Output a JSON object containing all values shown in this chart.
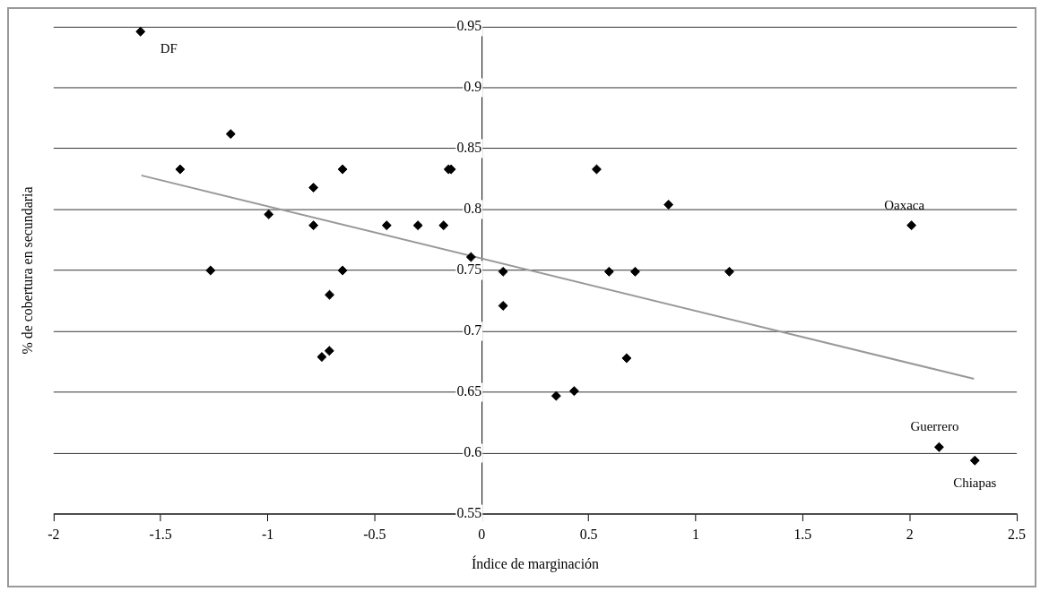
{
  "chart_data": {
    "type": "scatter",
    "xlabel": "Índice de marginación",
    "ylabel": "% de cobertura en secundaria",
    "series": [
      {
        "color": "#000000",
        "marker": "diamond",
        "x": [
          -1.594,
          -1.409,
          -1.173,
          -1.267,
          -0.995,
          -0.786,
          -0.786,
          -0.65,
          -0.65,
          -0.711,
          -0.747,
          -0.712,
          -0.444,
          -0.298,
          -0.178,
          -0.155,
          -0.143,
          -0.05,
          0.1,
          0.1,
          0.348,
          0.432,
          0.537,
          0.595,
          0.717,
          0.677,
          0.873,
          1.157,
          2.008,
          2.137,
          2.304
        ],
        "values": [
          0.946,
          0.833,
          0.862,
          0.75,
          0.796,
          0.818,
          0.787,
          0.833,
          0.75,
          0.73,
          0.679,
          0.684,
          0.787,
          0.787,
          0.787,
          0.833,
          0.833,
          0.761,
          0.749,
          0.721,
          0.647,
          0.651,
          0.833,
          0.749,
          0.749,
          0.678,
          0.804,
          0.749,
          0.787,
          0.605,
          0.594
        ]
      },
      {
        "type": "line",
        "color": "#999999",
        "marker": "none",
        "line_style": "solid",
        "x": [
          -1.59,
          2.3
        ],
        "values": [
          0.828,
          0.661
        ]
      }
    ],
    "annotations": [
      {
        "text": "DF",
        "x": -1.594,
        "y": 0.946
      },
      {
        "text": "Oaxaca",
        "x": 2.008,
        "y": 0.787
      },
      {
        "text": "Guerrero",
        "x": 2.137,
        "y": 0.605
      },
      {
        "text": "Chiapas",
        "x": 2.304,
        "y": 0.594
      }
    ],
    "xlim": [
      -2,
      2.5
    ],
    "xticks": [
      -2,
      -1.5,
      -1,
      -0.5,
      0,
      0.5,
      1,
      1.5,
      2,
      2.5
    ],
    "ylim": [
      0.55,
      0.95
    ],
    "yticks": [
      0.55,
      0.6,
      0.65,
      0.7,
      0.75,
      0.8,
      0.85,
      0.9,
      0.95
    ],
    "grid": "y",
    "legend": false
  }
}
